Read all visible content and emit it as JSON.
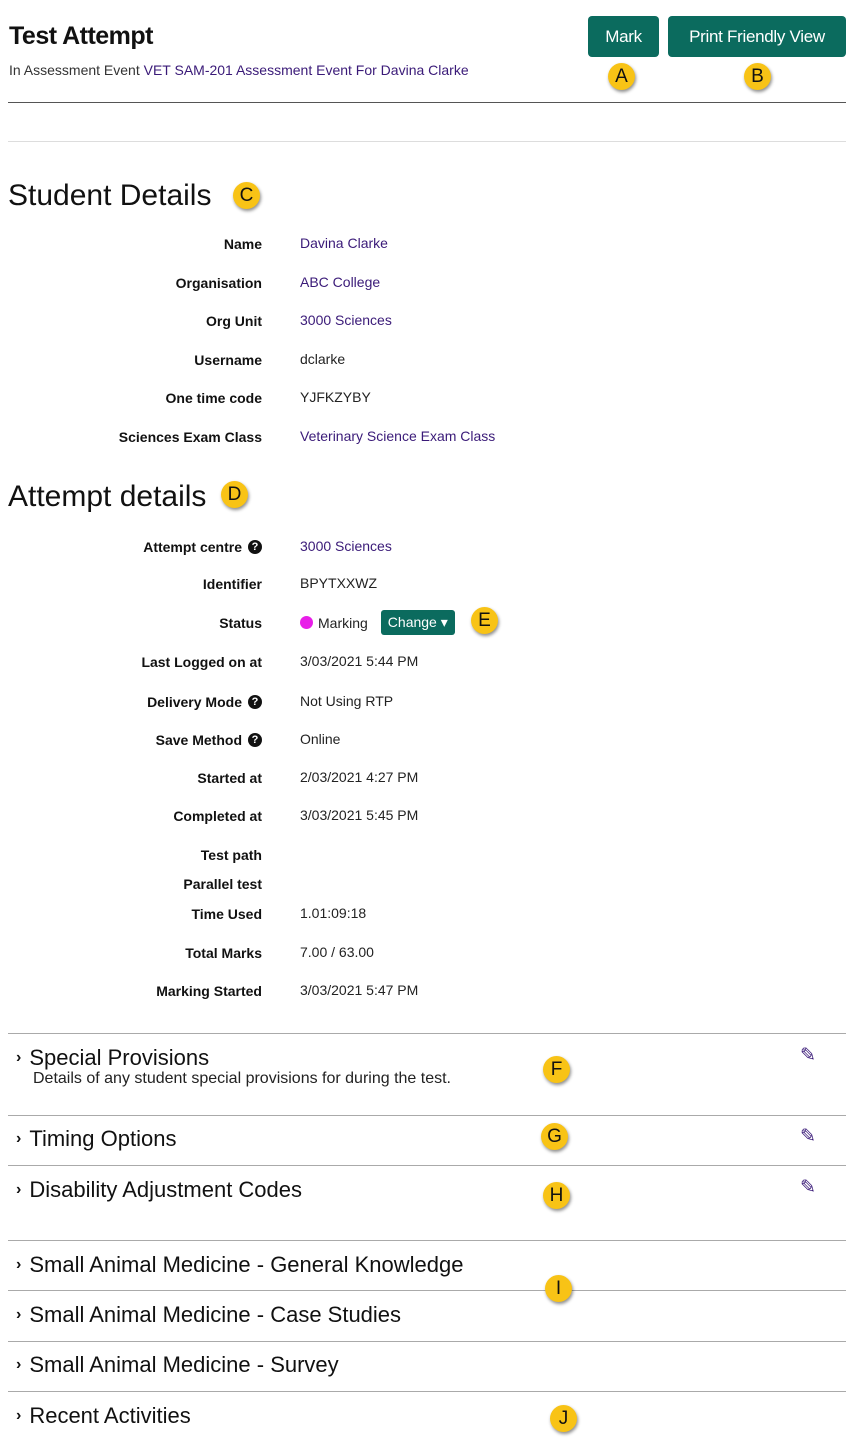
{
  "header": {
    "title": "Test Attempt",
    "subtitle_prefix": "In Assessment Event ",
    "subtitle_link": "VET SAM-201 Assessment Event For Davina Clarke",
    "mark_label": "Mark",
    "print_label": "Print Friendly View"
  },
  "student": {
    "heading": "Student Details",
    "rows": [
      {
        "label": "Name",
        "value": "Davina Clarke",
        "link": true
      },
      {
        "label": "Organisation",
        "value": "ABC College",
        "link": true
      },
      {
        "label": "Org Unit",
        "value": "3000 Sciences",
        "link": true
      },
      {
        "label": "Username",
        "value": "dclarke"
      },
      {
        "label": "One time code",
        "value": "YJFKZYBY"
      },
      {
        "label": "Sciences Exam Class",
        "value": "Veterinary Science Exam Class",
        "link": true
      }
    ]
  },
  "attempt": {
    "heading": "Attempt details",
    "rows": [
      {
        "label": "Attempt centre",
        "value": "3000 Sciences",
        "link": true,
        "help": true
      },
      {
        "label": "Identifier",
        "value": "BPYTXXWZ"
      },
      {
        "label": "Status",
        "value": "Marking",
        "status": true,
        "status_color": "#e81ee8",
        "change_label": "Change"
      },
      {
        "label": "Last Logged on at",
        "value": "3/03/2021 5:44 PM"
      },
      {
        "label": "Delivery Mode",
        "value": "Not Using RTP",
        "help": true
      },
      {
        "label": "Save Method",
        "value": "Online",
        "help": true
      },
      {
        "label": "Started at",
        "value": "2/03/2021 4:27 PM"
      },
      {
        "label": "Completed at",
        "value": "3/03/2021 5:45 PM"
      },
      {
        "label": "Test path",
        "value": ""
      },
      {
        "label": "Parallel test",
        "value": ""
      },
      {
        "label": "Time Used",
        "value": "1.01:09:18"
      },
      {
        "label": "Total Marks",
        "value": "7.00 / 63.00"
      },
      {
        "label": "Marking Started",
        "value": "3/03/2021 5:47 PM"
      }
    ]
  },
  "sections": [
    {
      "title": "Special Provisions",
      "description": "Details of any student special provisions for during the test.",
      "editable": true
    },
    {
      "title": "Timing Options",
      "editable": true
    },
    {
      "title": "Disability Adjustment Codes",
      "editable": true
    },
    {
      "title": "Small Animal Medicine - General Knowledge"
    },
    {
      "title": "Small Animal Medicine - Case Studies"
    },
    {
      "title": "Small Animal Medicine - Survey"
    },
    {
      "title": "Recent Activities"
    }
  ],
  "callouts": [
    "A",
    "B",
    "C",
    "D",
    "E",
    "F",
    "G",
    "H",
    "I",
    "J"
  ],
  "colors": {
    "primary": "#0b6b5e",
    "link": "#3a1a78",
    "callout": "#f8c316"
  }
}
